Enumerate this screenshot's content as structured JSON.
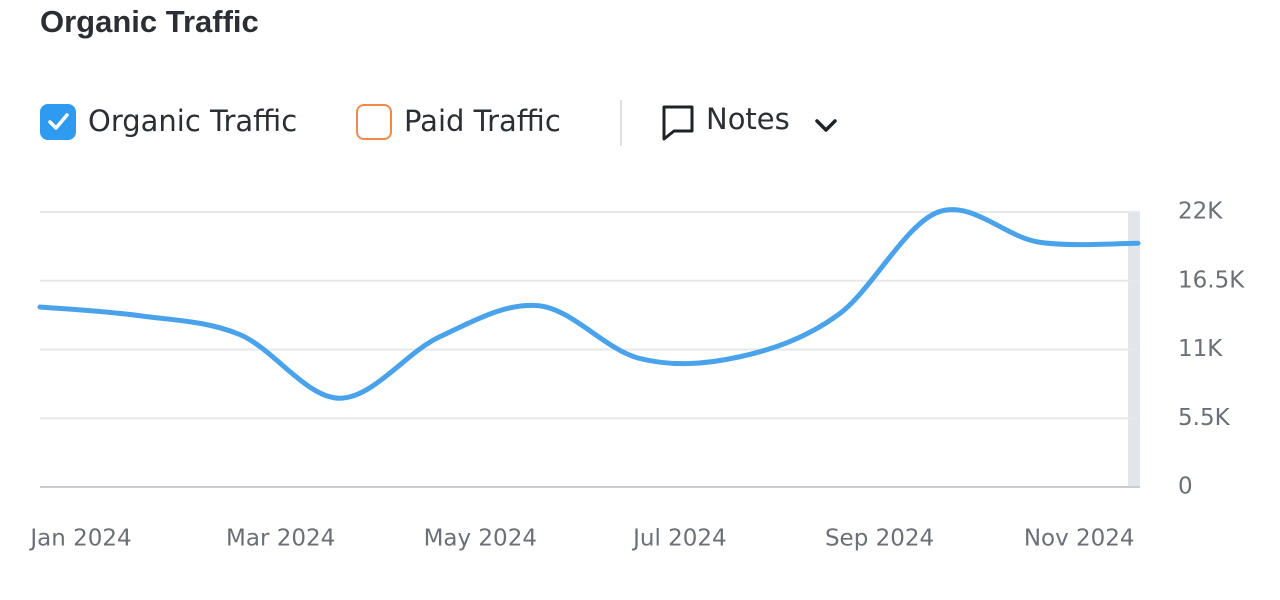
{
  "chart_data": {
    "type": "line",
    "title": "Organic Traffic",
    "legend_items": [
      {
        "label": "Organic Traffic",
        "checked": true,
        "color": "#2f9bf0"
      },
      {
        "label": "Paid Traffic",
        "checked": false,
        "color": "#f08a4b"
      }
    ],
    "notes_button": "Notes",
    "categories": [
      "Jan 2024",
      null,
      "Mar 2024",
      null,
      "May 2024",
      null,
      "Jul 2024",
      null,
      "Sep 2024",
      null,
      "Nov 2024",
      null
    ],
    "series": [
      {
        "name": "Organic Traffic",
        "color": "#4aa3ea",
        "values": [
          14400,
          13700,
          12200,
          7100,
          12000,
          14500,
          10300,
          10400,
          13800,
          22000,
          19600,
          19500
        ]
      }
    ],
    "ylim": [
      0,
      22000
    ],
    "yticks": [
      0,
      {
        "value": 5500,
        "label": "5.5K"
      },
      {
        "value": 11000,
        "label": "11K"
      },
      {
        "value": 16500,
        "label": "16.5K"
      },
      {
        "value": 22000,
        "label": "22K"
      }
    ],
    "grid": true
  }
}
